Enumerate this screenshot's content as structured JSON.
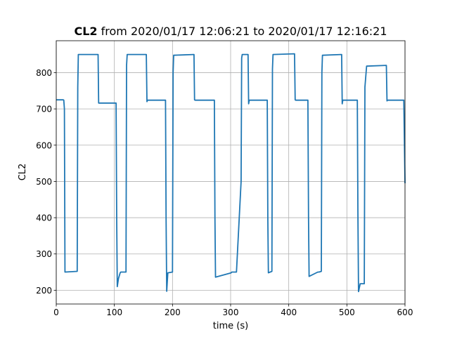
{
  "chart_data": {
    "type": "line",
    "title_bold": "CL2",
    "title_rest": " from 2020/01/17 12:06:21 to 2020/01/17 12:16:21",
    "xlabel": "time (s)",
    "ylabel": "CL2",
    "xlim": [
      0,
      600
    ],
    "ylim": [
      162,
      888
    ],
    "xticks": [
      0,
      100,
      200,
      300,
      400,
      500,
      600
    ],
    "yticks": [
      200,
      300,
      400,
      500,
      600,
      700,
      800
    ],
    "grid": true,
    "line_color": "#1f77b4",
    "series": [
      {
        "x": [
          0,
          12,
          13,
          14,
          15,
          36,
          37,
          38,
          72,
          73,
          74,
          103,
          104,
          105,
          107,
          110,
          111,
          120,
          121,
          122,
          155,
          156,
          157,
          188,
          189,
          190,
          192,
          200,
          201,
          202,
          237,
          238,
          239,
          272,
          273,
          274,
          301,
          302,
          303,
          310,
          318,
          319,
          320,
          330,
          331,
          332,
          343,
          363,
          364,
          365,
          371,
          372,
          373,
          410,
          411,
          412,
          433,
          434,
          435,
          450,
          452,
          456,
          457,
          458,
          491,
          492,
          493,
          518,
          519,
          520,
          523,
          530,
          531,
          534,
          568,
          569,
          570,
          597,
          598,
          600
        ],
        "y": [
          725,
          725,
          724,
          700,
          250,
          252,
          760,
          850,
          850,
          716,
          716,
          716,
          390,
          210,
          232,
          248,
          250,
          250,
          820,
          850,
          850,
          720,
          724,
          724,
          400,
          197,
          248,
          250,
          800,
          848,
          850,
          725,
          724,
          724,
          400,
          236,
          248,
          250,
          250,
          250,
          500,
          840,
          850,
          850,
          714,
          724,
          724,
          724,
          400,
          248,
          252,
          810,
          850,
          852,
          725,
          724,
          724,
          400,
          238,
          250,
          250,
          252,
          800,
          848,
          850,
          714,
          724,
          724,
          420,
          196,
          218,
          218,
          760,
          818,
          820,
          722,
          724,
          724,
          724,
          495
        ]
      }
    ]
  }
}
